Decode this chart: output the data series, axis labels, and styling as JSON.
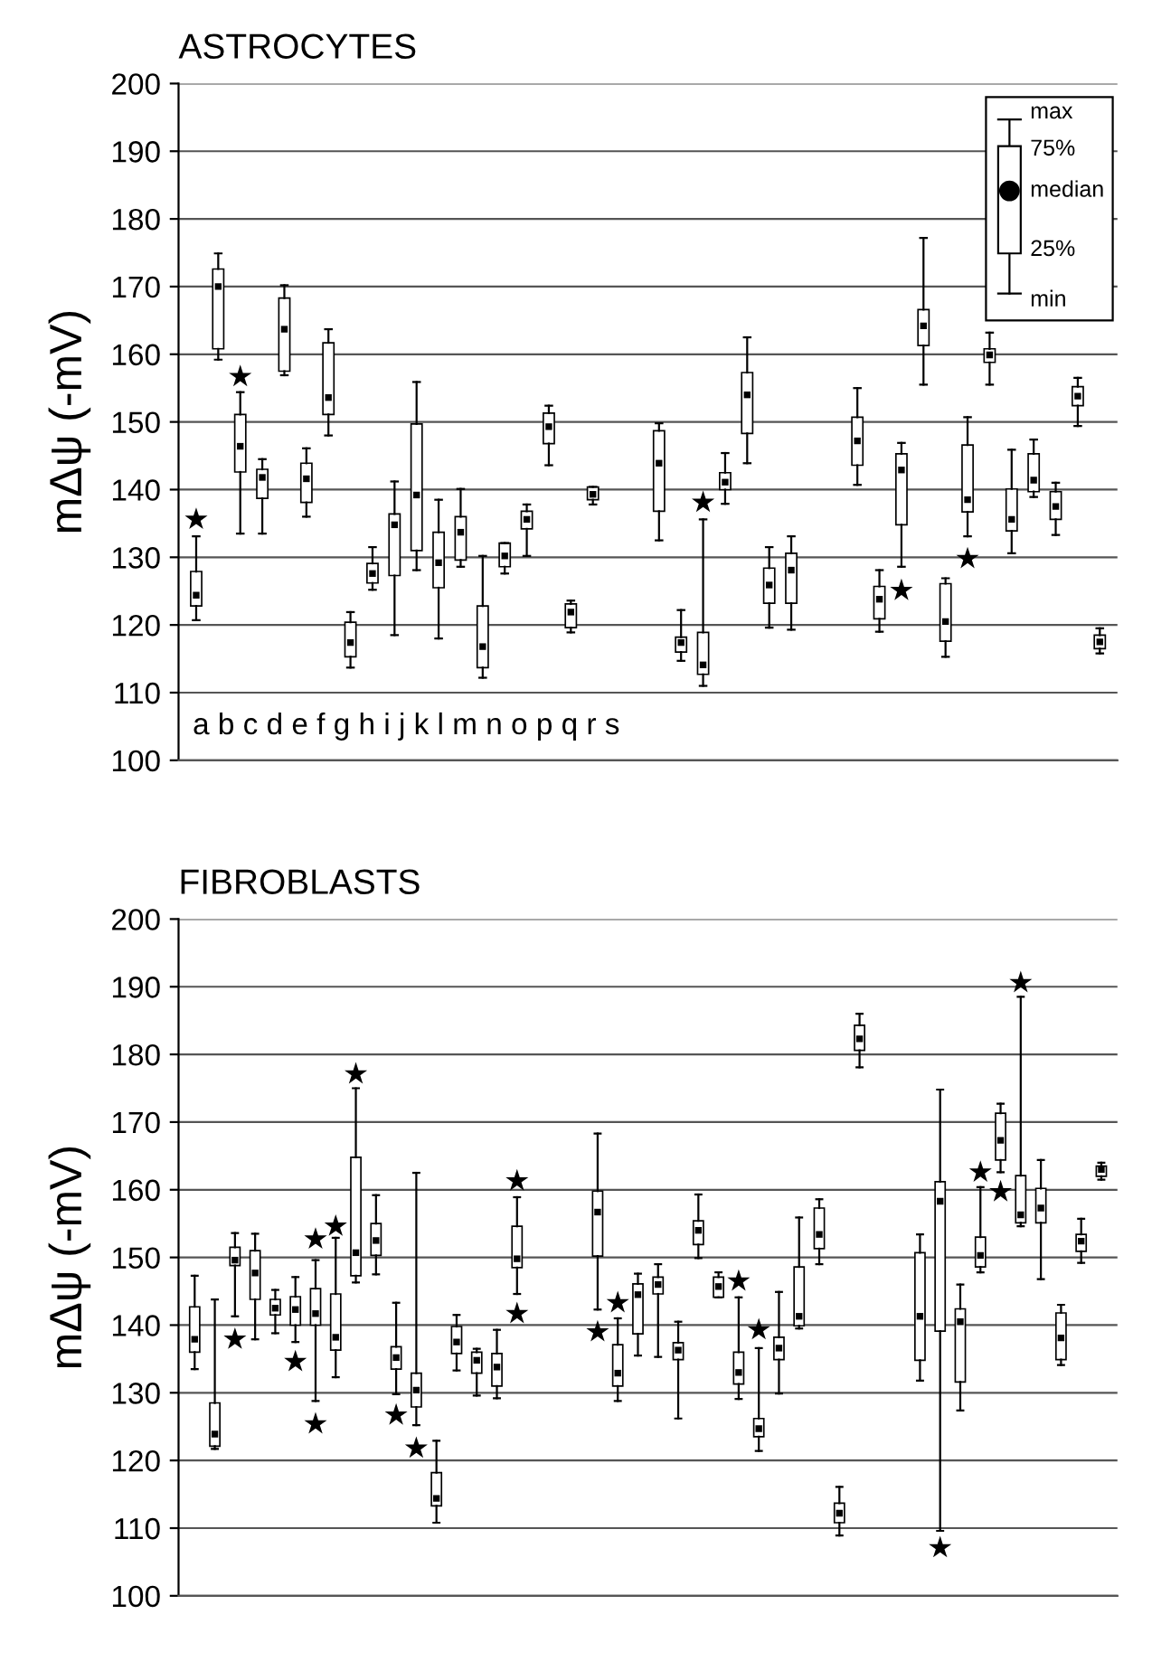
{
  "chart_data": [
    {
      "type": "box",
      "title": "ASTROCYTES",
      "color": "#ffffff",
      "ylabel": "mΔψ (-mV)",
      "ylim": [
        100,
        200
      ],
      "yticks": [
        100,
        110,
        120,
        130,
        140,
        150,
        160,
        170,
        180,
        190,
        200
      ],
      "grid": "y",
      "tick_labels": "y",
      "categories": [
        null,
        null,
        null,
        null,
        null,
        null,
        null,
        null,
        null,
        null,
        null,
        null,
        null,
        null,
        null,
        null,
        null,
        null,
        null,
        null,
        null,
        null,
        null,
        null,
        null,
        null,
        null,
        null,
        null,
        null,
        null,
        null,
        null,
        null,
        null,
        null,
        null,
        null,
        null,
        null,
        null,
        null
      ],
      "boxes": [
        {
          "low": 120.7,
          "q1": 122.8,
          "median": 124.4,
          "q3": 127.9,
          "high": 133.1
        },
        {
          "low": 159.2,
          "q1": 160.8,
          "median": 170.0,
          "q3": 172.6,
          "high": 174.9
        },
        {
          "low": 133.5,
          "q1": 142.6,
          "median": 146.4,
          "q3": 151.1,
          "high": 154.4
        },
        {
          "low": 133.5,
          "q1": 138.7,
          "median": 141.8,
          "q3": 143.0,
          "high": 144.5
        },
        {
          "low": 156.9,
          "q1": 157.5,
          "median": 163.7,
          "q3": 168.3,
          "high": 170.2
        },
        {
          "low": 136.0,
          "q1": 138.1,
          "median": 141.6,
          "q3": 143.9,
          "high": 146.1
        },
        {
          "low": 148.0,
          "q1": 151.1,
          "median": 153.6,
          "q3": 161.7,
          "high": 163.7
        },
        {
          "low": 113.7,
          "q1": 115.3,
          "median": 117.4,
          "q3": 120.4,
          "high": 121.9
        },
        {
          "low": 125.2,
          "q1": 126.2,
          "median": 127.6,
          "q3": 129.1,
          "high": 131.5
        },
        {
          "low": 118.5,
          "q1": 127.3,
          "median": 134.8,
          "q3": 136.4,
          "high": 141.2
        },
        {
          "low": 128.1,
          "q1": 131.0,
          "median": 139.2,
          "q3": 149.7,
          "high": 155.9
        },
        {
          "low": 118.0,
          "q1": 125.5,
          "median": 129.2,
          "q3": 133.7,
          "high": 138.5
        },
        {
          "low": 128.6,
          "q1": 129.6,
          "median": 133.7,
          "q3": 136.0,
          "high": 140.1
        },
        {
          "low": 112.2,
          "q1": 113.7,
          "median": 116.8,
          "q3": 122.8,
          "high": 130.2
        },
        {
          "low": 127.6,
          "q1": 128.6,
          "median": 130.2,
          "q3": 132.1,
          "high": 132.1
        },
        {
          "low": 130.2,
          "q1": 134.2,
          "median": 135.6,
          "q3": 136.8,
          "high": 137.8
        },
        {
          "low": 143.6,
          "q1": 146.8,
          "median": 149.3,
          "q3": 151.3,
          "high": 152.4
        },
        {
          "low": 118.9,
          "q1": 119.6,
          "median": 121.9,
          "q3": 123.1,
          "high": 123.6
        },
        {
          "low": 137.8,
          "q1": 138.5,
          "median": 139.3,
          "q3": 140.4,
          "high": 140.4
        },
        null,
        null,
        {
          "low": 132.5,
          "q1": 136.8,
          "median": 143.9,
          "q3": 148.7,
          "high": 149.8
        },
        {
          "low": 114.7,
          "q1": 116.0,
          "median": 117.4,
          "q3": 118.2,
          "high": 122.2
        },
        {
          "low": 111.0,
          "q1": 112.7,
          "median": 114.1,
          "q3": 118.9,
          "high": 135.6
        },
        {
          "low": 137.9,
          "q1": 140.0,
          "median": 141.1,
          "q3": 142.5,
          "high": 145.4
        },
        {
          "low": 143.9,
          "q1": 148.3,
          "median": 154.0,
          "q3": 157.3,
          "high": 162.5
        },
        {
          "low": 119.6,
          "q1": 123.2,
          "median": 125.9,
          "q3": 128.4,
          "high": 131.5
        },
        {
          "low": 119.3,
          "q1": 123.2,
          "median": 128.1,
          "q3": 130.6,
          "high": 133.1
        },
        null,
        null,
        {
          "low": 140.7,
          "q1": 143.6,
          "median": 147.2,
          "q3": 150.7,
          "high": 155.0
        },
        {
          "low": 119.0,
          "q1": 120.9,
          "median": 123.8,
          "q3": 125.7,
          "high": 128.1
        },
        {
          "low": 128.6,
          "q1": 134.8,
          "median": 142.9,
          "q3": 145.3,
          "high": 146.9
        },
        {
          "low": 155.5,
          "q1": 161.3,
          "median": 164.2,
          "q3": 166.6,
          "high": 177.2
        },
        {
          "low": 115.3,
          "q1": 117.6,
          "median": 120.5,
          "q3": 126.1,
          "high": 126.9
        },
        {
          "low": 133.1,
          "q1": 136.7,
          "median": 138.5,
          "q3": 146.6,
          "high": 150.7
        },
        {
          "low": 155.5,
          "q1": 158.8,
          "median": 159.9,
          "q3": 160.8,
          "high": 163.2
        },
        {
          "low": 130.6,
          "q1": 133.9,
          "median": 135.6,
          "q3": 140.1,
          "high": 145.9
        },
        {
          "low": 138.9,
          "q1": 139.7,
          "median": 141.4,
          "q3": 145.3,
          "high": 147.4
        },
        {
          "low": 133.3,
          "q1": 135.6,
          "median": 137.5,
          "q3": 139.7,
          "high": 141.0
        },
        {
          "low": 149.4,
          "q1": 152.4,
          "median": 153.8,
          "q3": 155.2,
          "high": 156.5
        },
        {
          "low": 115.8,
          "q1": 116.5,
          "median": 117.5,
          "q3": 118.5,
          "high": 119.5
        }
      ],
      "series": [
        {
          "type": "scatter",
          "marker": "star",
          "color": "#000000",
          "values": [
            135.6,
            null,
            156.7,
            null,
            null,
            null,
            null,
            null,
            null,
            null,
            null,
            null,
            null,
            null,
            null,
            null,
            null,
            null,
            null,
            null,
            null,
            null,
            null,
            138.1,
            null,
            null,
            null,
            null,
            null,
            null,
            null,
            null,
            125.1,
            null,
            null,
            129.8,
            null,
            null,
            null,
            null,
            null,
            null
          ]
        }
      ],
      "annotations": [
        "a b c d e f g h i j k l m n o p q r s",
        "max",
        "75%",
        "median",
        "25%",
        "min"
      ]
    },
    {
      "type": "box",
      "title": "FIBROBLASTS",
      "color": "#ffffff",
      "ylabel": "mΔψ (-mV)",
      "ylim": [
        100,
        200
      ],
      "yticks": [
        100,
        110,
        120,
        130,
        140,
        150,
        160,
        170,
        180,
        190,
        200
      ],
      "grid": "y",
      "tick_labels": "y",
      "categories": [
        null,
        null,
        null,
        null,
        null,
        null,
        null,
        null,
        null,
        null,
        null,
        null,
        null,
        null,
        null,
        null,
        null,
        null,
        null,
        null,
        null,
        null,
        null,
        null,
        null,
        null,
        null,
        null,
        null,
        null,
        null,
        null,
        null,
        null,
        null,
        null,
        null,
        null,
        null,
        null,
        null,
        null,
        null,
        null,
        null,
        null
      ],
      "boxes": [
        {
          "low": 133.5,
          "q1": 136.0,
          "median": 137.9,
          "q3": 142.7,
          "high": 147.3
        },
        {
          "low": 121.7,
          "q1": 122.1,
          "median": 123.9,
          "q3": 128.5,
          "high": 143.8
        },
        {
          "low": 141.3,
          "q1": 148.8,
          "median": 149.6,
          "q3": 151.5,
          "high": 153.6
        },
        {
          "low": 137.9,
          "q1": 143.8,
          "median": 147.7,
          "q3": 151.0,
          "high": 153.5
        },
        {
          "low": 138.8,
          "q1": 141.5,
          "median": 142.5,
          "q3": 143.8,
          "high": 145.2
        },
        {
          "low": 137.5,
          "q1": 140.0,
          "median": 142.3,
          "q3": 144.2,
          "high": 147.1
        },
        {
          "low": 128.8,
          "q1": 140.0,
          "median": 141.7,
          "q3": 145.4,
          "high": 149.6
        },
        {
          "low": 132.3,
          "q1": 136.3,
          "median": 138.2,
          "q3": 144.6,
          "high": 152.9
        },
        {
          "low": 146.3,
          "q1": 147.3,
          "median": 150.7,
          "q3": 164.8,
          "high": 175.0
        },
        {
          "low": 147.5,
          "q1": 150.3,
          "median": 152.5,
          "q3": 155.0,
          "high": 159.2
        },
        {
          "low": 129.8,
          "q1": 133.5,
          "median": 135.2,
          "q3": 136.8,
          "high": 143.3
        },
        {
          "low": 125.2,
          "q1": 127.9,
          "median": 130.4,
          "q3": 132.9,
          "high": 162.5
        },
        {
          "low": 110.8,
          "q1": 113.3,
          "median": 114.4,
          "q3": 118.2,
          "high": 122.9
        },
        {
          "low": 133.3,
          "q1": 135.8,
          "median": 137.5,
          "q3": 139.8,
          "high": 141.5
        },
        {
          "low": 129.6,
          "q1": 132.9,
          "median": 134.8,
          "q3": 136.0,
          "high": 136.5
        },
        {
          "low": 129.2,
          "q1": 131.0,
          "median": 133.8,
          "q3": 135.8,
          "high": 139.3
        },
        {
          "low": 144.6,
          "q1": 148.5,
          "median": 149.8,
          "q3": 154.6,
          "high": 158.9
        },
        null,
        null,
        null,
        {
          "low": 142.3,
          "q1": 150.2,
          "median": 156.7,
          "q3": 159.8,
          "high": 168.3
        },
        {
          "low": 128.8,
          "q1": 131.0,
          "median": 132.9,
          "q3": 137.1,
          "high": 141.0
        },
        {
          "low": 135.5,
          "q1": 138.7,
          "median": 144.5,
          "q3": 146.1,
          "high": 147.6
        },
        {
          "low": 135.3,
          "q1": 144.6,
          "median": 146.0,
          "q3": 147.1,
          "high": 149.0
        },
        {
          "low": 126.2,
          "q1": 134.9,
          "median": 136.3,
          "q3": 137.4,
          "high": 140.5
        },
        {
          "low": 149.9,
          "q1": 151.9,
          "median": 154.0,
          "q3": 155.4,
          "high": 159.3
        },
        {
          "low": 144.1,
          "q1": 144.1,
          "median": 145.7,
          "q3": 147.1,
          "high": 147.8
        },
        {
          "low": 129.1,
          "q1": 131.3,
          "median": 133.0,
          "q3": 136.0,
          "high": 144.1
        },
        {
          "low": 121.4,
          "q1": 123.5,
          "median": 124.7,
          "q3": 126.2,
          "high": 136.6
        },
        {
          "low": 129.9,
          "q1": 134.9,
          "median": 136.6,
          "q3": 138.2,
          "high": 144.9
        },
        {
          "low": 139.5,
          "q1": 139.9,
          "median": 141.3,
          "q3": 148.6,
          "high": 155.9
        },
        {
          "low": 149.0,
          "q1": 151.3,
          "median": 153.4,
          "q3": 157.3,
          "high": 158.6
        },
        {
          "low": 108.9,
          "q1": 110.8,
          "median": 112.2,
          "q3": 113.7,
          "high": 116.1
        },
        {
          "low": 178.1,
          "q1": 180.6,
          "median": 182.3,
          "q3": 184.3,
          "high": 186.0
        },
        null,
        null,
        {
          "low": 131.8,
          "q1": 134.8,
          "median": 141.3,
          "q3": 150.7,
          "high": 153.4
        },
        {
          "low": 109.6,
          "q1": 139.1,
          "median": 158.3,
          "q3": 161.2,
          "high": 174.8
        },
        {
          "low": 127.4,
          "q1": 131.6,
          "median": 140.5,
          "q3": 142.4,
          "high": 146.0
        },
        {
          "low": 147.8,
          "q1": 148.6,
          "median": 150.3,
          "q3": 153.0,
          "high": 160.4
        },
        {
          "low": 162.6,
          "q1": 164.4,
          "median": 167.3,
          "q3": 171.3,
          "high": 172.7
        },
        {
          "low": 154.6,
          "q1": 155.1,
          "median": 156.3,
          "q3": 162.1,
          "high": 188.5
        },
        {
          "low": 146.8,
          "q1": 155.1,
          "median": 157.3,
          "q3": 160.2,
          "high": 164.4
        },
        {
          "low": 134.1,
          "q1": 134.9,
          "median": 138.1,
          "q3": 141.8,
          "high": 143.0
        },
        {
          "low": 149.2,
          "q1": 150.9,
          "median": 152.4,
          "q3": 153.4,
          "high": 155.7
        },
        {
          "low": 161.5,
          "q1": 162.0,
          "median": 163.0,
          "q3": 163.5,
          "high": 164.0
        }
      ],
      "series": [
        {
          "type": "scatter",
          "marker": "star",
          "color": "#000000",
          "values": [
            null,
            null,
            null,
            null,
            null,
            null,
            152.7,
            154.6,
            177.1,
            null,
            null,
            null,
            null,
            null,
            null,
            null,
            161.3,
            null,
            null,
            null,
            null,
            143.3,
            null,
            null,
            null,
            null,
            null,
            146.5,
            139.3,
            null,
            null,
            null,
            null,
            null,
            null,
            null,
            null,
            null,
            null,
            162.6,
            null,
            190.6,
            null,
            null,
            null,
            null
          ]
        },
        {
          "type": "scatter",
          "marker": "star",
          "color": "#000000",
          "values": [
            null,
            null,
            137.9,
            null,
            null,
            134.6,
            125.4,
            null,
            null,
            null,
            126.7,
            121.8,
            null,
            null,
            null,
            null,
            141.7,
            null,
            null,
            null,
            139.0,
            null,
            null,
            null,
            null,
            null,
            null,
            null,
            null,
            null,
            null,
            null,
            null,
            null,
            null,
            null,
            null,
            107.1,
            null,
            null,
            159.7,
            null,
            null,
            null,
            null,
            null
          ]
        }
      ]
    }
  ]
}
